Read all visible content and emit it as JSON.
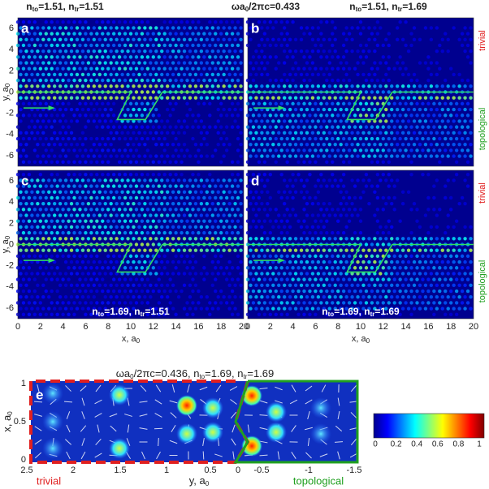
{
  "header": {
    "left": [
      "n",
      "to",
      "=1.51, n",
      "tr",
      "=1.51"
    ],
    "center": [
      "ωa",
      "0",
      "/2πc=0.433"
    ],
    "right": [
      "n",
      "to",
      "=1.51, n",
      "tr",
      "=1.69"
    ]
  },
  "panels": [
    {
      "letter": "a"
    },
    {
      "letter": "b",
      "trivial": "trivial",
      "topological": "topological"
    },
    {
      "letter": "c",
      "bottom": [
        "n",
        "to",
        "=1.69, n",
        "tr",
        "=1.51"
      ]
    },
    {
      "letter": "d",
      "bottom": [
        "n",
        "to",
        "=1.69, n",
        "tr",
        "=1.69"
      ],
      "trivial": "trivial",
      "topological": "topological"
    }
  ],
  "axes": {
    "y_label": [
      "y, a",
      "0"
    ],
    "x_label": [
      "x, a",
      "0"
    ],
    "yticks": [
      "6",
      "4",
      "2",
      "0",
      "-2",
      "-4",
      "-6"
    ],
    "xticks": [
      "0",
      "2",
      "4",
      "6",
      "8",
      "10",
      "12",
      "14",
      "16",
      "18",
      "20"
    ]
  },
  "panel_e": {
    "letter": "e",
    "title": [
      "ωa",
      "0",
      "/2πc=0.436, n",
      "to",
      "=1.69, n",
      "tr",
      "=1.69"
    ],
    "y_label": [
      "x, a",
      "0"
    ],
    "x_label": [
      "y, a",
      "0"
    ],
    "yticks": [
      "1",
      "0.5",
      "0"
    ],
    "xticks": [
      "2.5",
      "2",
      "1.5",
      "1",
      "0.5",
      "0",
      "-0.5",
      "-1",
      "-1.5"
    ],
    "trivial": "trivial",
    "topological": "topological"
  },
  "colorbar": {
    "ticks": [
      "0",
      "0.2",
      "0.4",
      "0.6",
      "0.8",
      "1"
    ]
  }
}
